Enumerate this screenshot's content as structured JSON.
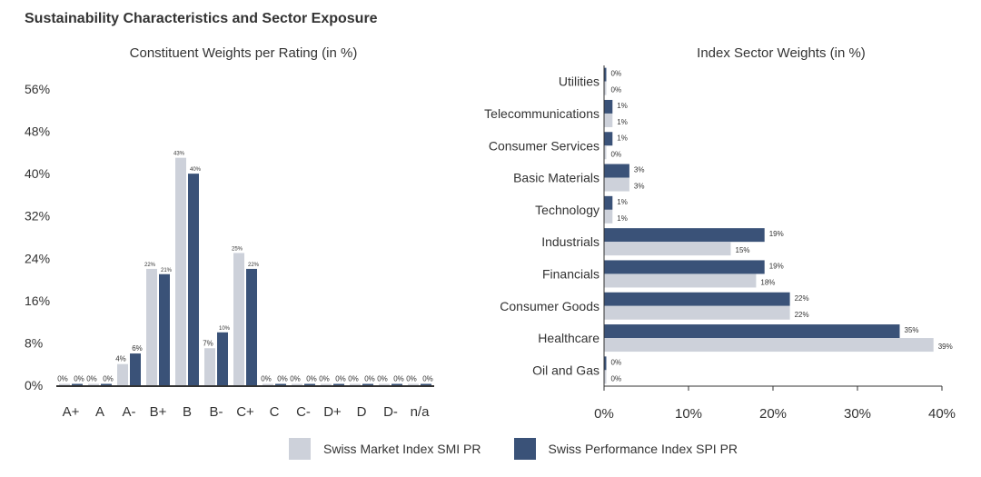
{
  "page_title": "Sustainability Characteristics and Sector Exposure",
  "colors": {
    "smi": "#cdd1da",
    "spi": "#3a5278",
    "axis": "#333333",
    "text": "#333333"
  },
  "legend": [
    {
      "name": "Swiss Market Index SMI PR",
      "color": "#cdd1da"
    },
    {
      "name": "Swiss Performance Index SPI PR",
      "color": "#3a5278"
    }
  ],
  "chart_data": [
    {
      "type": "bar",
      "title": "Constituent Weights per Rating (in %)",
      "categories": [
        "A+",
        "A",
        "A-",
        "B+",
        "B",
        "B-",
        "C+",
        "C",
        "C-",
        "D+",
        "D",
        "D-",
        "n/a"
      ],
      "series": [
        {
          "name": "Swiss Market Index SMI PR",
          "values": [
            0,
            0,
            4,
            22,
            43,
            7,
            25,
            0,
            0,
            0,
            0,
            0,
            0
          ]
        },
        {
          "name": "Swiss Performance Index SPI PR",
          "values": [
            0,
            0,
            6,
            21,
            40,
            10,
            22,
            0,
            0,
            0,
            0,
            0,
            0
          ]
        }
      ],
      "ylim": [
        0,
        56
      ],
      "yticks": [
        "0%",
        "8%",
        "16%",
        "24%",
        "32%",
        "40%",
        "48%",
        "56%"
      ],
      "xlabel": "",
      "ylabel": ""
    },
    {
      "type": "bar",
      "orientation": "horizontal",
      "title": "Index Sector Weights (in %)",
      "categories": [
        "Utilities",
        "Telecommunications",
        "Consumer Services",
        "Basic Materials",
        "Technology",
        "Industrials",
        "Financials",
        "Consumer Goods",
        "Healthcare",
        "Oil and Gas"
      ],
      "series": [
        {
          "name": "Swiss Performance Index SPI PR",
          "values": [
            0,
            1,
            1,
            3,
            1,
            19,
            19,
            22,
            35,
            0
          ]
        },
        {
          "name": "Swiss Market Index SMI PR",
          "values": [
            0,
            1,
            0,
            3,
            1,
            15,
            18,
            22,
            39,
            0
          ]
        }
      ],
      "xlim": [
        0,
        40
      ],
      "xticks": [
        "0%",
        "10%",
        "20%",
        "30%",
        "40%"
      ],
      "xlabel": "",
      "ylabel": ""
    }
  ]
}
